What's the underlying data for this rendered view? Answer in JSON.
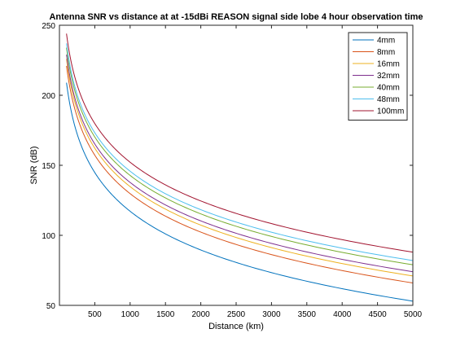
{
  "chart_data": {
    "type": "line",
    "title": "Antenna SNR vs distance at at -15dBi REASON signal side lobe 4 hour observation time",
    "xlabel": "Distance (km)",
    "ylabel": "SNR (dB)",
    "xlim": [
      0,
      5000
    ],
    "ylim": [
      50,
      250
    ],
    "xticks": [
      500,
      1000,
      1500,
      2000,
      2500,
      3000,
      3500,
      4000,
      4500,
      5000
    ],
    "yticks": [
      50,
      100,
      150,
      200,
      250
    ],
    "xtick_labels": [
      "500",
      "1000",
      "1500",
      "2000",
      "2500",
      "3000",
      "3500",
      "4000",
      "4500",
      "5000"
    ],
    "ytick_labels": [
      "50",
      "100",
      "150",
      "200",
      "250"
    ],
    "x_start": 100,
    "curve_model": "SNR(d) = value_at_100km - k * log10(d / 100)",
    "legend_position": "top-right",
    "grid": false,
    "series": [
      {
        "name": "4mm",
        "color": "#0072BD",
        "value_at_100km": 209,
        "value_at_5000km": 53
      },
      {
        "name": "8mm",
        "color": "#D95319",
        "value_at_100km": 221,
        "value_at_5000km": 66
      },
      {
        "name": "16mm",
        "color": "#EDB120",
        "value_at_100km": 226,
        "value_at_5000km": 71
      },
      {
        "name": "32mm",
        "color": "#7E2F8E",
        "value_at_100km": 229,
        "value_at_5000km": 74
      },
      {
        "name": "40mm",
        "color": "#77AC30",
        "value_at_100km": 234,
        "value_at_5000km": 79
      },
      {
        "name": "48mm",
        "color": "#4DBEEE",
        "value_at_100km": 237,
        "value_at_5000km": 82
      },
      {
        "name": "100mm",
        "color": "#A2142F",
        "value_at_100km": 244,
        "value_at_5000km": 88
      }
    ]
  }
}
